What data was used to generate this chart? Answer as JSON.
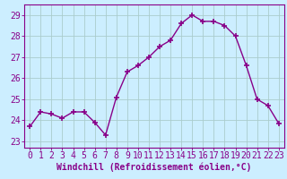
{
  "x": [
    0,
    1,
    2,
    3,
    4,
    5,
    6,
    7,
    8,
    9,
    10,
    11,
    12,
    13,
    14,
    15,
    16,
    17,
    18,
    19,
    20,
    21,
    22,
    23
  ],
  "y": [
    23.7,
    24.4,
    24.3,
    24.1,
    24.4,
    24.4,
    23.9,
    23.3,
    25.1,
    26.3,
    26.6,
    27.0,
    27.5,
    27.8,
    28.6,
    29.0,
    28.7,
    28.7,
    28.5,
    28.0,
    26.6,
    25.0,
    24.7,
    23.85
  ],
  "line_color": "#880088",
  "marker": "+",
  "marker_size": 4,
  "marker_lw": 1.2,
  "bg_color": "#cceeff",
  "grid_color": "#aacccc",
  "xlabel": "Windchill (Refroidissement éolien,°C)",
  "xlabel_color": "#880088",
  "xlabel_fontsize": 7,
  "ylabel_ticks": [
    23,
    24,
    25,
    26,
    27,
    28,
    29
  ],
  "ylim": [
    22.7,
    29.5
  ],
  "xlim": [
    -0.5,
    23.5
  ],
  "tick_fontsize": 7,
  "tick_color": "#880088",
  "axis_color": "#880088",
  "line_width": 1.0
}
